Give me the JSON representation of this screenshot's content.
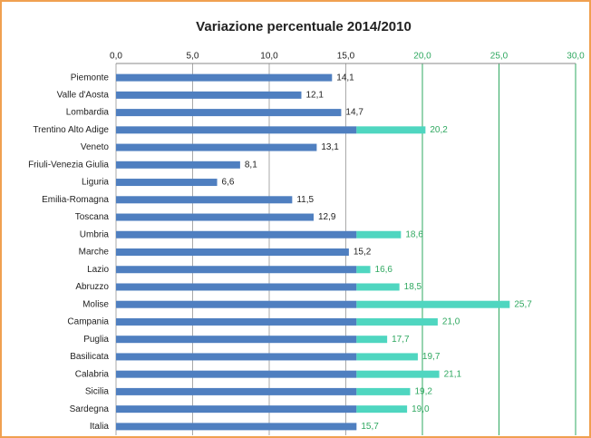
{
  "chart_data": {
    "type": "barh",
    "title": "Variazione percentuale 2014/2010",
    "categories": [
      "Piemonte",
      "Valle d'Aosta",
      "Lombardia",
      "Trentino Alto Adige",
      "Veneto",
      "Friuli-Venezia Giulia",
      "Liguria",
      "Emilia-Romagna",
      "Toscana",
      "Umbria",
      "Marche",
      "Lazio",
      "Abruzzo",
      "Molise",
      "Campania",
      "Puglia",
      "Basilicata",
      "Calabria",
      "Sicilia",
      "Sardegna",
      "Italia"
    ],
    "values": [
      14.1,
      12.1,
      14.7,
      20.2,
      13.1,
      8.1,
      6.6,
      11.5,
      12.9,
      18.6,
      15.2,
      16.6,
      18.5,
      25.7,
      21.0,
      17.7,
      19.7,
      21.1,
      19.2,
      19.0,
      15.7
    ],
    "value_labels": [
      "14,1",
      "12,1",
      "14,7",
      "20,2",
      "13,1",
      "8,1",
      "6,6",
      "11,5",
      "12,9",
      "18,6",
      "15,2",
      "16,6",
      "18,5",
      "25,7",
      "21,0",
      "17,7",
      "19,7",
      "21,1",
      "19,2",
      "19,0",
      "15,7"
    ],
    "color": "#4f7fc0",
    "above_color": "#4fd6c0",
    "above_label_color": "#2fa860",
    "xlim": [
      0,
      30
    ],
    "xticks": [
      {
        "value": 0,
        "label": "0,0"
      },
      {
        "value": 5,
        "label": "5,0"
      },
      {
        "value": 10,
        "label": "10,0"
      },
      {
        "value": 15,
        "label": "15,0"
      },
      {
        "value": 20,
        "label": "20,0"
      },
      {
        "value": 25,
        "label": "25,0"
      },
      {
        "value": 30,
        "label": "30,0"
      }
    ],
    "grid": true
  }
}
